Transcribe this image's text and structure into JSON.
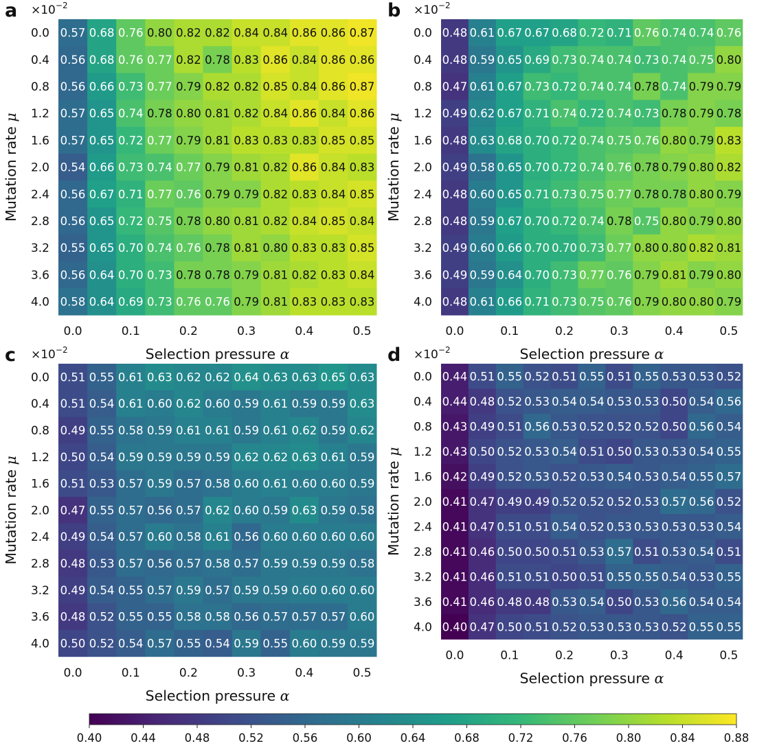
{
  "chart_data": [
    {
      "type": "heatmap",
      "panel_label": "a",
      "x_multiplier_label": "×10",
      "x_multiplier_exp": "−2",
      "xlabel": "Selection pressure",
      "xlabel_symbol": "α",
      "ylabel": "Mutation rate",
      "ylabel_symbol": "μ",
      "x_ticks": [
        "0.0",
        "0.1",
        "0.2",
        "0.3",
        "0.4",
        "0.5"
      ],
      "y": [
        "0.0",
        "0.4",
        "0.8",
        "1.2",
        "1.6",
        "2.0",
        "2.4",
        "2.8",
        "3.2",
        "3.6",
        "4.0"
      ],
      "x": [
        0.0,
        0.05,
        0.1,
        0.15,
        0.2,
        0.25,
        0.3,
        0.35,
        0.4,
        0.45,
        0.5
      ],
      "values": [
        [
          "0.57",
          "0.68",
          "0.76",
          "0.80",
          "0.82",
          "0.82",
          "0.84",
          "0.84",
          "0.86",
          "0.86",
          "0.87"
        ],
        [
          "0.56",
          "0.68",
          "0.76",
          "0.77",
          "0.82",
          "0.78",
          "0.83",
          "0.86",
          "0.84",
          "0.86",
          "0.86"
        ],
        [
          "0.56",
          "0.66",
          "0.73",
          "0.77",
          "0.79",
          "0.82",
          "0.82",
          "0.85",
          "0.84",
          "0.86",
          "0.87"
        ],
        [
          "0.57",
          "0.65",
          "0.74",
          "0.78",
          "0.80",
          "0.81",
          "0.82",
          "0.84",
          "0.86",
          "0.84",
          "0.86"
        ],
        [
          "0.57",
          "0.65",
          "0.72",
          "0.77",
          "0.79",
          "0.81",
          "0.83",
          "0.83",
          "0.83",
          "0.85",
          "0.85"
        ],
        [
          "0.54",
          "0.66",
          "0.73",
          "0.74",
          "0.77",
          "0.79",
          "0.81",
          "0.82",
          "0.86",
          "0.84",
          "0.83"
        ],
        [
          "0.56",
          "0.67",
          "0.71",
          "0.77",
          "0.76",
          "0.79",
          "0.79",
          "0.82",
          "0.83",
          "0.84",
          "0.85"
        ],
        [
          "0.56",
          "0.65",
          "0.72",
          "0.75",
          "0.78",
          "0.80",
          "0.81",
          "0.82",
          "0.84",
          "0.85",
          "0.84"
        ],
        [
          "0.55",
          "0.65",
          "0.70",
          "0.74",
          "0.76",
          "0.78",
          "0.81",
          "0.80",
          "0.83",
          "0.83",
          "0.85"
        ],
        [
          "0.56",
          "0.64",
          "0.70",
          "0.73",
          "0.78",
          "0.78",
          "0.79",
          "0.81",
          "0.82",
          "0.83",
          "0.84"
        ],
        [
          "0.58",
          "0.64",
          "0.69",
          "0.73",
          "0.76",
          "0.76",
          "0.79",
          "0.81",
          "0.83",
          "0.83",
          "0.83"
        ]
      ]
    },
    {
      "type": "heatmap",
      "panel_label": "b",
      "x_multiplier_label": "×10",
      "x_multiplier_exp": "−2",
      "xlabel": "Selection pressure",
      "xlabel_symbol": "α",
      "ylabel": "Mutation rate",
      "ylabel_symbol": "μ",
      "x_ticks": [
        "0.0",
        "0.1",
        "0.2",
        "0.3",
        "0.4",
        "0.5"
      ],
      "y": [
        "0.0",
        "0.4",
        "0.8",
        "1.2",
        "1.6",
        "2.0",
        "2.4",
        "2.8",
        "3.2",
        "3.6",
        "4.0"
      ],
      "x": [
        0.0,
        0.05,
        0.1,
        0.15,
        0.2,
        0.25,
        0.3,
        0.35,
        0.4,
        0.45,
        0.5
      ],
      "values": [
        [
          "0.48",
          "0.61",
          "0.67",
          "0.67",
          "0.68",
          "0.72",
          "0.71",
          "0.76",
          "0.74",
          "0.74",
          "0.76"
        ],
        [
          "0.48",
          "0.59",
          "0.65",
          "0.69",
          "0.73",
          "0.74",
          "0.74",
          "0.73",
          "0.74",
          "0.75",
          "0.80"
        ],
        [
          "0.47",
          "0.61",
          "0.67",
          "0.73",
          "0.72",
          "0.74",
          "0.74",
          "0.78",
          "0.74",
          "0.79",
          "0.79"
        ],
        [
          "0.49",
          "0.62",
          "0.67",
          "0.71",
          "0.74",
          "0.72",
          "0.74",
          "0.73",
          "0.78",
          "0.79",
          "0.78"
        ],
        [
          "0.48",
          "0.63",
          "0.68",
          "0.70",
          "0.72",
          "0.74",
          "0.75",
          "0.76",
          "0.80",
          "0.79",
          "0.83"
        ],
        [
          "0.49",
          "0.58",
          "0.65",
          "0.70",
          "0.72",
          "0.74",
          "0.76",
          "0.78",
          "0.79",
          "0.80",
          "0.82"
        ],
        [
          "0.48",
          "0.60",
          "0.65",
          "0.71",
          "0.73",
          "0.75",
          "0.77",
          "0.78",
          "0.78",
          "0.80",
          "0.79"
        ],
        [
          "0.48",
          "0.59",
          "0.67",
          "0.70",
          "0.72",
          "0.74",
          "0.78",
          "0.75",
          "0.80",
          "0.79",
          "0.80"
        ],
        [
          "0.49",
          "0.60",
          "0.66",
          "0.70",
          "0.70",
          "0.73",
          "0.77",
          "0.80",
          "0.80",
          "0.82",
          "0.81"
        ],
        [
          "0.49",
          "0.59",
          "0.64",
          "0.70",
          "0.73",
          "0.77",
          "0.76",
          "0.79",
          "0.81",
          "0.79",
          "0.80"
        ],
        [
          "0.48",
          "0.61",
          "0.66",
          "0.71",
          "0.73",
          "0.75",
          "0.76",
          "0.79",
          "0.80",
          "0.80",
          "0.79"
        ]
      ]
    },
    {
      "type": "heatmap",
      "panel_label": "c",
      "x_multiplier_label": "×10",
      "x_multiplier_exp": "−2",
      "xlabel": "Selection pressure",
      "xlabel_symbol": "α",
      "ylabel": "Mutation rate",
      "ylabel_symbol": "μ",
      "x_ticks": [
        "0.0",
        "0.1",
        "0.2",
        "0.3",
        "0.4",
        "0.5"
      ],
      "y": [
        "0.0",
        "0.4",
        "0.8",
        "1.2",
        "1.6",
        "2.0",
        "2.4",
        "2.8",
        "3.2",
        "3.6",
        "4.0"
      ],
      "x": [
        0.0,
        0.05,
        0.1,
        0.15,
        0.2,
        0.25,
        0.3,
        0.35,
        0.4,
        0.45,
        0.5
      ],
      "values": [
        [
          "0.51",
          "0.55",
          "0.61",
          "0.63",
          "0.62",
          "0.62",
          "0.64",
          "0.63",
          "0.63",
          "0.65",
          "0.63"
        ],
        [
          "0.51",
          "0.54",
          "0.61",
          "0.60",
          "0.62",
          "0.60",
          "0.59",
          "0.61",
          "0.59",
          "0.59",
          "0.63"
        ],
        [
          "0.49",
          "0.55",
          "0.58",
          "0.59",
          "0.61",
          "0.61",
          "0.59",
          "0.61",
          "0.62",
          "0.59",
          "0.62"
        ],
        [
          "0.50",
          "0.54",
          "0.59",
          "0.59",
          "0.59",
          "0.59",
          "0.62",
          "0.62",
          "0.63",
          "0.61",
          "0.59"
        ],
        [
          "0.51",
          "0.53",
          "0.57",
          "0.59",
          "0.57",
          "0.58",
          "0.60",
          "0.61",
          "0.60",
          "0.60",
          "0.59"
        ],
        [
          "0.47",
          "0.55",
          "0.57",
          "0.56",
          "0.57",
          "0.62",
          "0.60",
          "0.59",
          "0.63",
          "0.59",
          "0.58"
        ],
        [
          "0.49",
          "0.54",
          "0.57",
          "0.60",
          "0.58",
          "0.61",
          "0.56",
          "0.60",
          "0.60",
          "0.60",
          "0.60"
        ],
        [
          "0.48",
          "0.53",
          "0.57",
          "0.56",
          "0.57",
          "0.58",
          "0.57",
          "0.59",
          "0.59",
          "0.59",
          "0.58"
        ],
        [
          "0.49",
          "0.54",
          "0.55",
          "0.57",
          "0.59",
          "0.57",
          "0.59",
          "0.59",
          "0.60",
          "0.60",
          "0.60"
        ],
        [
          "0.48",
          "0.52",
          "0.55",
          "0.55",
          "0.58",
          "0.58",
          "0.56",
          "0.57",
          "0.57",
          "0.57",
          "0.60"
        ],
        [
          "0.50",
          "0.52",
          "0.54",
          "0.57",
          "0.55",
          "0.54",
          "0.59",
          "0.55",
          "0.60",
          "0.59",
          "0.59"
        ]
      ]
    },
    {
      "type": "heatmap",
      "panel_label": "d",
      "x_multiplier_label": "×10",
      "x_multiplier_exp": "−2",
      "xlabel": "Selection pressure",
      "xlabel_symbol": "α",
      "ylabel": "Mutation rate",
      "ylabel_symbol": "μ",
      "x_ticks": [
        "0.0",
        "0.1",
        "0.2",
        "0.3",
        "0.4",
        "0.5"
      ],
      "y": [
        "0.0",
        "0.4",
        "0.8",
        "1.2",
        "1.6",
        "2.0",
        "2.4",
        "2.8",
        "3.2",
        "3.6",
        "4.0"
      ],
      "x": [
        0.0,
        0.05,
        0.1,
        0.15,
        0.2,
        0.25,
        0.3,
        0.35,
        0.4,
        0.45,
        0.5
      ],
      "values": [
        [
          "0.44",
          "0.51",
          "0.55",
          "0.52",
          "0.51",
          "0.55",
          "0.51",
          "0.55",
          "0.53",
          "0.53",
          "0.52"
        ],
        [
          "0.44",
          "0.48",
          "0.52",
          "0.53",
          "0.54",
          "0.54",
          "0.53",
          "0.53",
          "0.50",
          "0.54",
          "0.56"
        ],
        [
          "0.43",
          "0.49",
          "0.51",
          "0.56",
          "0.53",
          "0.52",
          "0.52",
          "0.52",
          "0.50",
          "0.56",
          "0.54"
        ],
        [
          "0.43",
          "0.50",
          "0.52",
          "0.53",
          "0.54",
          "0.51",
          "0.50",
          "0.53",
          "0.53",
          "0.54",
          "0.55"
        ],
        [
          "0.42",
          "0.49",
          "0.52",
          "0.53",
          "0.52",
          "0.53",
          "0.54",
          "0.53",
          "0.54",
          "0.55",
          "0.57"
        ],
        [
          "0.41",
          "0.47",
          "0.49",
          "0.49",
          "0.52",
          "0.52",
          "0.52",
          "0.53",
          "0.57",
          "0.56",
          "0.52"
        ],
        [
          "0.41",
          "0.47",
          "0.51",
          "0.51",
          "0.54",
          "0.52",
          "0.53",
          "0.53",
          "0.53",
          "0.53",
          "0.54"
        ],
        [
          "0.41",
          "0.46",
          "0.50",
          "0.50",
          "0.51",
          "0.53",
          "0.57",
          "0.51",
          "0.53",
          "0.54",
          "0.51"
        ],
        [
          "0.41",
          "0.46",
          "0.51",
          "0.51",
          "0.50",
          "0.51",
          "0.55",
          "0.55",
          "0.54",
          "0.53",
          "0.55"
        ],
        [
          "0.41",
          "0.46",
          "0.48",
          "0.48",
          "0.53",
          "0.54",
          "0.50",
          "0.53",
          "0.56",
          "0.54",
          "0.54"
        ],
        [
          "0.40",
          "0.47",
          "0.50",
          "0.51",
          "0.52",
          "0.53",
          "0.53",
          "0.53",
          "0.52",
          "0.55",
          "0.55"
        ]
      ]
    }
  ],
  "colorbar": {
    "min": 0.4,
    "max": 0.88,
    "ticks": [
      "0.40",
      "0.44",
      "0.48",
      "0.52",
      "0.56",
      "0.60",
      "0.64",
      "0.68",
      "0.72",
      "0.76",
      "0.80",
      "0.84",
      "0.88"
    ],
    "colormap": "viridis",
    "colors": [
      "#440154",
      "#482878",
      "#3e4a89",
      "#31688e",
      "#26828e",
      "#1f9e89",
      "#35b779",
      "#6ece58",
      "#b5de2b",
      "#fde725"
    ]
  }
}
